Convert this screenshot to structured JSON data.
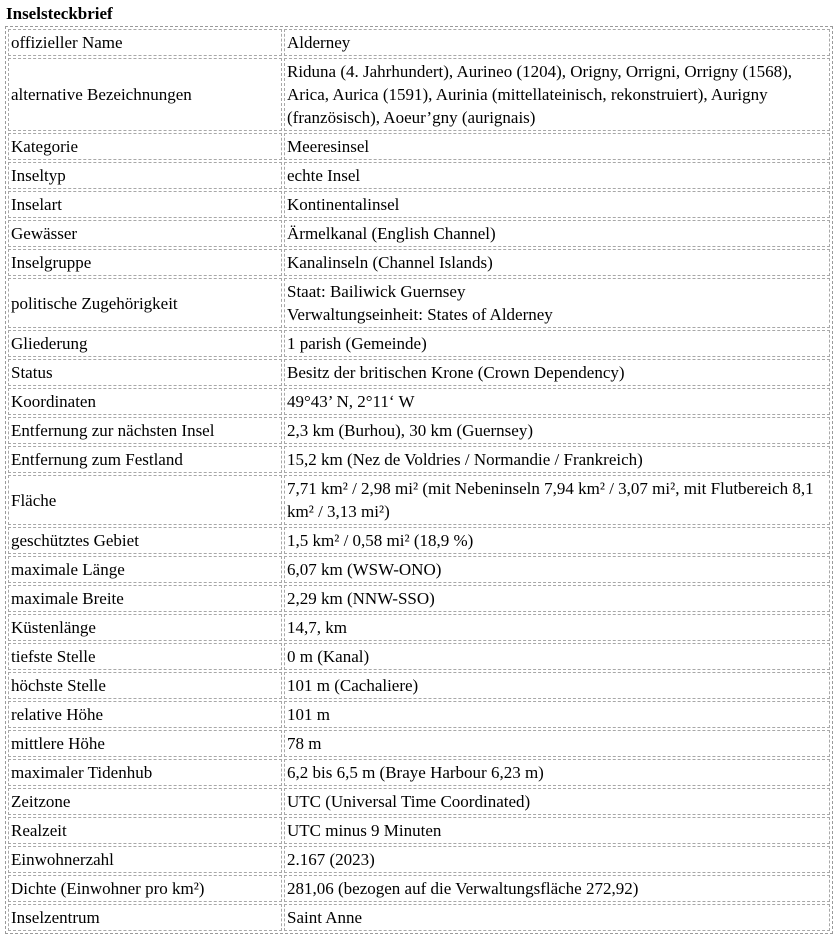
{
  "title": "Inselsteckbrief",
  "rows": [
    {
      "label": "offizieller Name",
      "value": [
        "Alderney"
      ]
    },
    {
      "label": "alternative Bezeichnungen",
      "value": [
        "Riduna (4. Jahrhundert), Aurineo (1204), Origny, Orrigni, Orrigny (1568), Arica, Aurica (1591), Aurinia (mittellateinisch, rekonstruiert), Aurigny (französisch), Aoeur’gny (aurignais)"
      ]
    },
    {
      "label": "Kategorie",
      "value": [
        "Meeresinsel"
      ]
    },
    {
      "label": "Inseltyp",
      "value": [
        "echte Insel"
      ]
    },
    {
      "label": "Inselart",
      "value": [
        "Kontinentalinsel"
      ]
    },
    {
      "label": "Gewässer",
      "value": [
        "Ärmelkanal (English Channel)"
      ]
    },
    {
      "label": "Inselgruppe",
      "value": [
        "Kanalinseln (Channel Islands)"
      ]
    },
    {
      "label": "politische Zugehörigkeit",
      "value": [
        "Staat: Bailiwick Guernsey",
        "Verwaltungseinheit: States of Alderney"
      ]
    },
    {
      "label": "Gliederung",
      "value": [
        "1 parish (Gemeinde)"
      ]
    },
    {
      "label": "Status",
      "value": [
        "Besitz der britischen Krone (Crown Dependency)"
      ]
    },
    {
      "label": "Koordinaten",
      "value": [
        "49°43’ N, 2°11‘ W"
      ]
    },
    {
      "label": "Entfernung zur nächsten Insel",
      "value": [
        "2,3 km (Burhou), 30 km (Guernsey)"
      ]
    },
    {
      "label": "Entfernung zum Festland",
      "value": [
        "15,2 km (Nez de Voldries / Normandie / Frankreich)"
      ]
    },
    {
      "label": "Fläche",
      "value": [
        "7,71 km² / 2,98 mi² (mit Nebeninseln 7,94 km² / 3,07 mi², mit Flutbereich 8,1 km² / 3,13 mi²)"
      ]
    },
    {
      "label": "geschütztes Gebiet",
      "value": [
        "1,5 km² / 0,58 mi² (18,9 %)"
      ]
    },
    {
      "label": "maximale Länge",
      "value": [
        "6,07 km (WSW-ONO)"
      ]
    },
    {
      "label": "maximale Breite",
      "value": [
        "2,29 km (NNW-SSO)"
      ]
    },
    {
      "label": "Küstenlänge",
      "value": [
        "14,7, km"
      ]
    },
    {
      "label": "tiefste Stelle",
      "value": [
        "0 m (Kanal)"
      ]
    },
    {
      "label": "höchste Stelle",
      "value": [
        "101 m (Cachaliere)"
      ]
    },
    {
      "label": "relative Höhe",
      "value": [
        "101 m"
      ]
    },
    {
      "label": "mittlere Höhe",
      "value": [
        "78 m"
      ]
    },
    {
      "label": "maximaler Tidenhub",
      "value": [
        "6,2 bis 6,5 m (Braye Harbour 6,23 m)"
      ]
    },
    {
      "label": "Zeitzone",
      "value": [
        "UTC (Universal Time Coordinated)"
      ]
    },
    {
      "label": "Realzeit",
      "value": [
        "UTC minus 9 Minuten"
      ]
    },
    {
      "label": "Einwohnerzahl",
      "value": [
        "2.167 (2023)"
      ]
    },
    {
      "label": "Dichte (Einwohner pro km²)",
      "value": [
        "281,06 (bezogen auf die Verwaltungsfläche 272,92)"
      ]
    },
    {
      "label": "Inselzentrum",
      "value": [
        "Saint Anne"
      ]
    }
  ]
}
